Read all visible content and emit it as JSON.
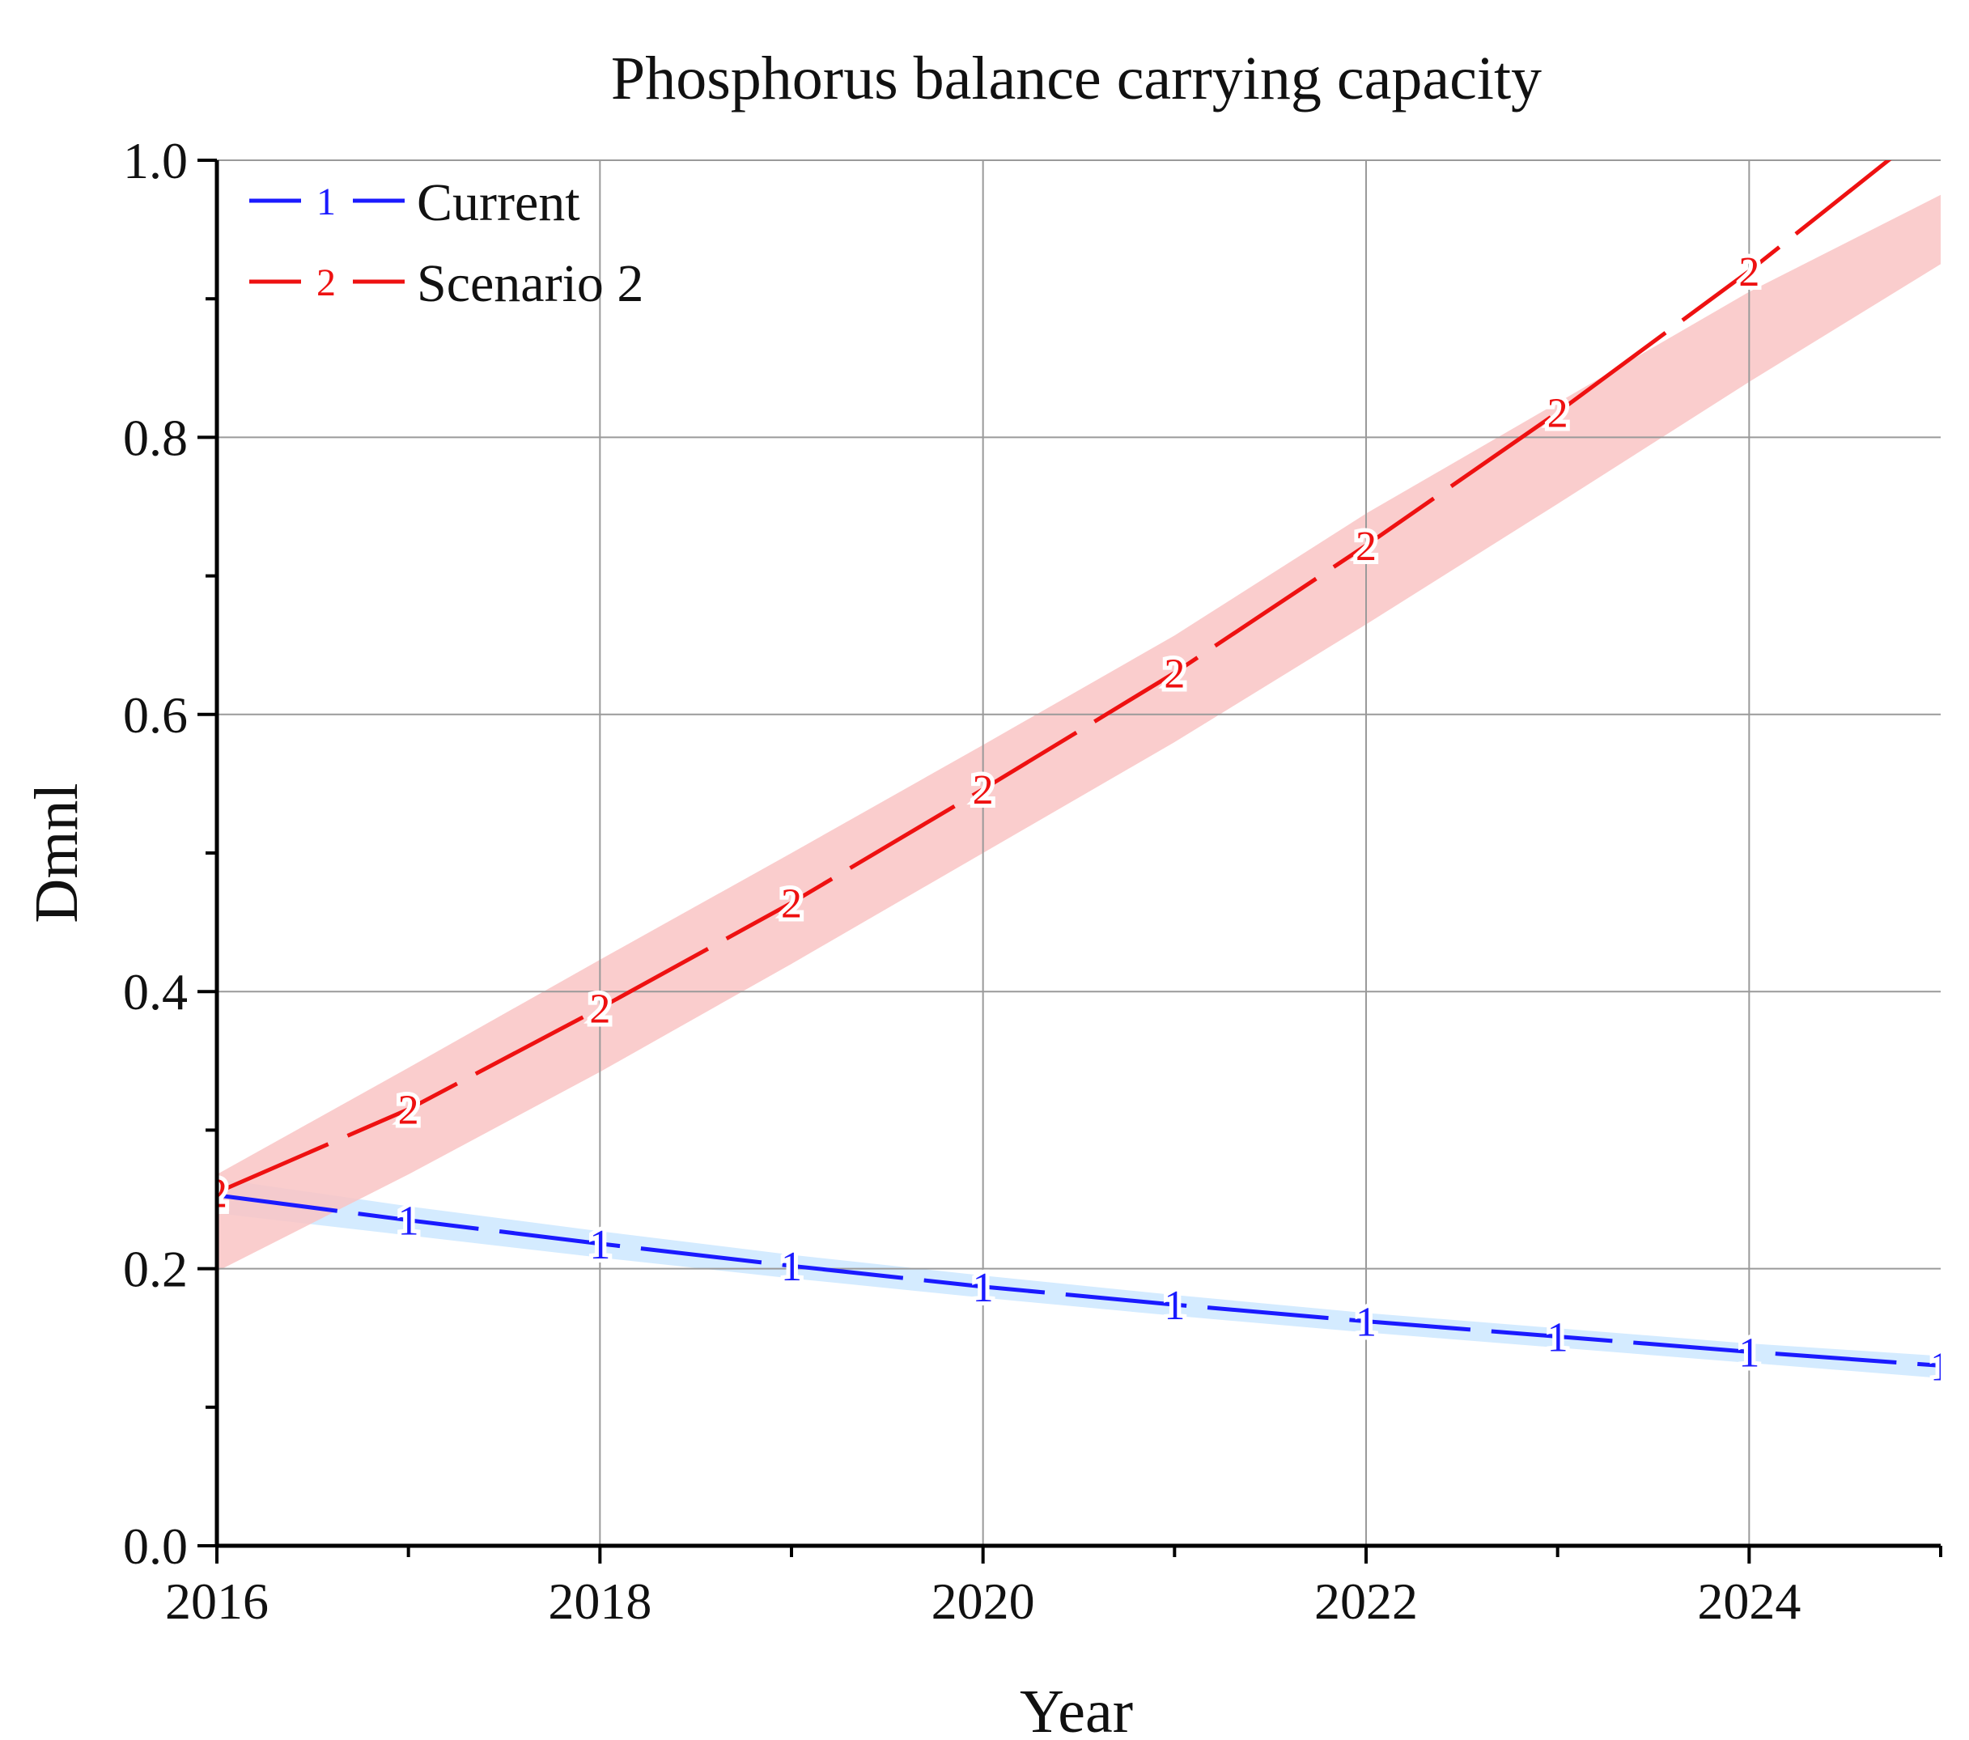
{
  "chart_data": {
    "type": "line",
    "title": "Phosphorus balance carrying capacity",
    "xlabel": "Year",
    "ylabel": "Dmnl",
    "xlim": [
      2016,
      2025
    ],
    "ylim": [
      0,
      1
    ],
    "x_ticks": [
      2016,
      2018,
      2020,
      2022,
      2024
    ],
    "x_tick_labels": [
      "2016",
      "2018",
      "2020",
      "2022",
      "2024"
    ],
    "y_ticks": [
      0,
      0.2,
      0.4,
      0.6,
      0.8,
      1.0
    ],
    "y_tick_labels": [
      "0.0",
      "0.2",
      "0.4",
      "0.6",
      "0.8",
      "1.0"
    ],
    "grid": true,
    "legend_position": "top-left",
    "series": [
      {
        "name": "Current",
        "marker": "1",
        "color": "#1a1aff",
        "band_color": "#cde8ff",
        "x": [
          2016,
          2017,
          2018,
          2019,
          2020,
          2021,
          2022,
          2023,
          2024,
          2025
        ],
        "y": [
          0.253,
          0.235,
          0.218,
          0.202,
          0.187,
          0.174,
          0.162,
          0.151,
          0.14,
          0.13
        ],
        "band_upper": [
          0.265,
          0.245,
          0.227,
          0.21,
          0.195,
          0.181,
          0.168,
          0.157,
          0.146,
          0.137
        ],
        "band_lower": [
          0.24,
          0.224,
          0.208,
          0.193,
          0.179,
          0.166,
          0.154,
          0.143,
          0.132,
          0.121
        ]
      },
      {
        "name": "Scenario 2",
        "marker": "2",
        "color": "#ee1111",
        "band_color": "#f9c4c4",
        "x": [
          2016,
          2017,
          2018,
          2019,
          2020,
          2021,
          2022,
          2023,
          2024,
          2025
        ],
        "y": [
          0.255,
          0.315,
          0.388,
          0.464,
          0.546,
          0.63,
          0.722,
          0.818,
          0.92,
          1.03
        ],
        "band_upper": [
          0.268,
          0.345,
          0.423,
          0.5,
          0.578,
          0.657,
          0.745,
          0.825,
          0.905,
          0.975
        ],
        "band_lower": [
          0.198,
          0.268,
          0.342,
          0.42,
          0.5,
          0.58,
          0.665,
          0.752,
          0.84,
          0.925
        ]
      }
    ]
  }
}
